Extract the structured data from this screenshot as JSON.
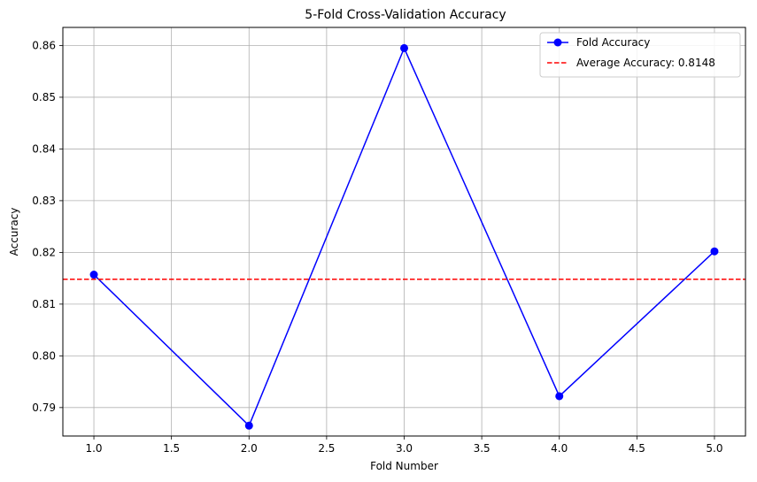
{
  "chart_data": {
    "type": "line",
    "title": "5-Fold Cross-Validation Accuracy",
    "xlabel": "Fold Number",
    "ylabel": "Accuracy",
    "xlim": [
      0.8,
      5.2
    ],
    "ylim": [
      0.7845,
      0.8635
    ],
    "xticks": [
      1.0,
      1.5,
      2.0,
      2.5,
      3.0,
      3.5,
      4.0,
      4.5,
      5.0
    ],
    "xtick_labels": [
      "1.0",
      "1.5",
      "2.0",
      "2.5",
      "3.0",
      "3.5",
      "4.0",
      "4.5",
      "5.0"
    ],
    "yticks": [
      0.79,
      0.8,
      0.81,
      0.82,
      0.83,
      0.84,
      0.85,
      0.86
    ],
    "ytick_labels": [
      "0.79",
      "0.80",
      "0.81",
      "0.82",
      "0.83",
      "0.84",
      "0.85",
      "0.86"
    ],
    "grid": true,
    "legend_position": "top-right",
    "series": [
      {
        "name": "Fold Accuracy",
        "color": "#0000ff",
        "marker": "circle",
        "x": [
          1,
          2,
          3,
          4,
          5
        ],
        "y": [
          0.8157,
          0.7865,
          0.8595,
          0.7922,
          0.8202
        ]
      }
    ],
    "reference_lines": [
      {
        "name": "Average Accuracy: 0.8148",
        "color": "#ff0000",
        "style": "dashed",
        "orientation": "horizontal",
        "y": 0.8148
      }
    ]
  }
}
